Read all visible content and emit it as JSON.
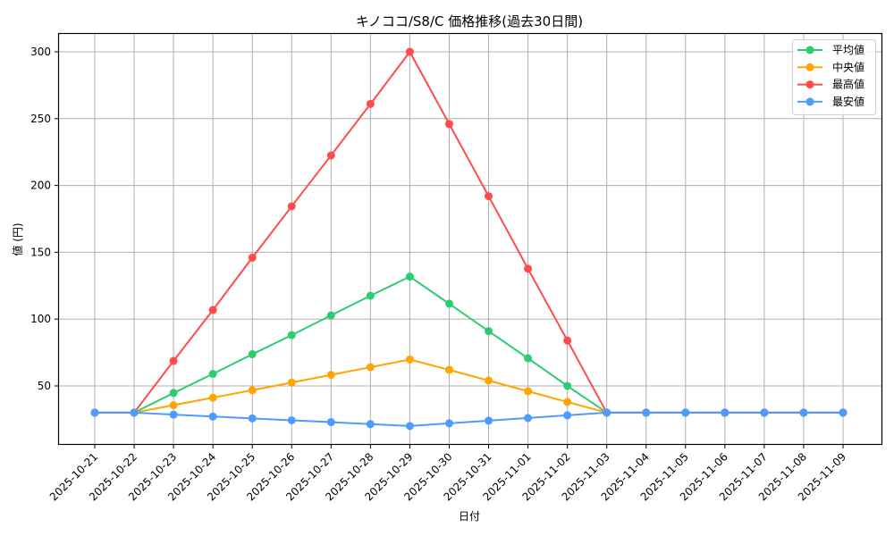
{
  "chart_data": {
    "type": "line",
    "title": "キノココ/S8/C 価格推移(過去30日間)",
    "xlabel": "日付",
    "ylabel": "値 (円)",
    "ylim": [
      10,
      315
    ],
    "yticks": [
      50,
      100,
      150,
      200,
      250,
      300
    ],
    "grid": true,
    "legend_position": "upper right",
    "categories": [
      "2025-10-21",
      "2025-10-22",
      "2025-10-23",
      "2025-10-24",
      "2025-10-25",
      "2025-10-26",
      "2025-10-27",
      "2025-10-28",
      "2025-10-29",
      "2025-10-30",
      "2025-10-31",
      "2025-11-01",
      "2025-11-02",
      "2025-11-03",
      "2025-11-04",
      "2025-11-05",
      "2025-11-06",
      "2025-11-07",
      "2025-11-08",
      "2025-11-09"
    ],
    "series": [
      {
        "name": "平均値",
        "color": "#2ecc71",
        "values": [
          30,
          30,
          44.7,
          59,
          73.7,
          88,
          102.8,
          117.5,
          131.8,
          111.5,
          91,
          70.7,
          50,
          30,
          30,
          30,
          30,
          30,
          30,
          30
        ]
      },
      {
        "name": "中央値",
        "color": "#ffa500",
        "values": [
          30,
          30,
          35.6,
          41.2,
          46.8,
          52.5,
          58.3,
          64,
          69.8,
          62,
          54,
          46,
          38,
          30,
          30,
          30,
          30,
          30,
          30,
          30
        ]
      },
      {
        "name": "最高値",
        "color": "#ff4b4b",
        "values": [
          30,
          30,
          68.7,
          106.8,
          146,
          184.4,
          222.5,
          261,
          300,
          246,
          192,
          137.7,
          84,
          30,
          30,
          30,
          30,
          30,
          30,
          30
        ]
      },
      {
        "name": "最安値",
        "color": "#4c9bff",
        "values": [
          30,
          30,
          28.5,
          27.1,
          25.7,
          24.3,
          22.9,
          21.4,
          20,
          22,
          24,
          26,
          28,
          30,
          30,
          30,
          30,
          30,
          30,
          30
        ]
      }
    ]
  }
}
